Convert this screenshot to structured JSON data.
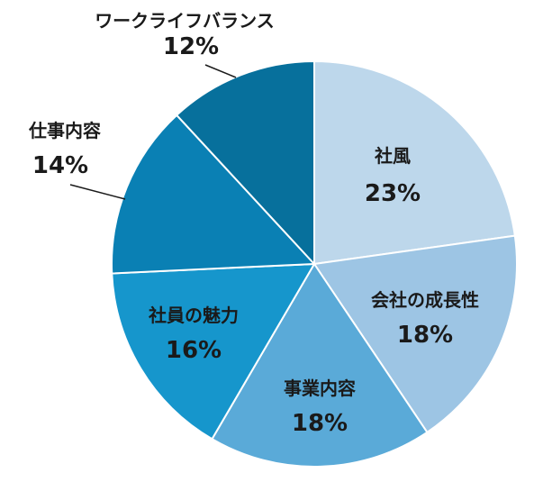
{
  "chart_data": {
    "type": "pie",
    "categories": [
      "社風",
      "会社の成長性",
      "事業内容",
      "社員の魅力",
      "仕事内容",
      "ワークライフバランス"
    ],
    "values": [
      23,
      18,
      18,
      16,
      14,
      12
    ],
    "labels": [
      "23%",
      "18%",
      "18%",
      "16%",
      "14%",
      "12%"
    ],
    "colors": [
      "#bdd7eb",
      "#9dc5e4",
      "#5aaad8",
      "#1696cc",
      "#0a80b4",
      "#07709c"
    ],
    "start": "12 o'clock",
    "direction": "clockwise"
  }
}
